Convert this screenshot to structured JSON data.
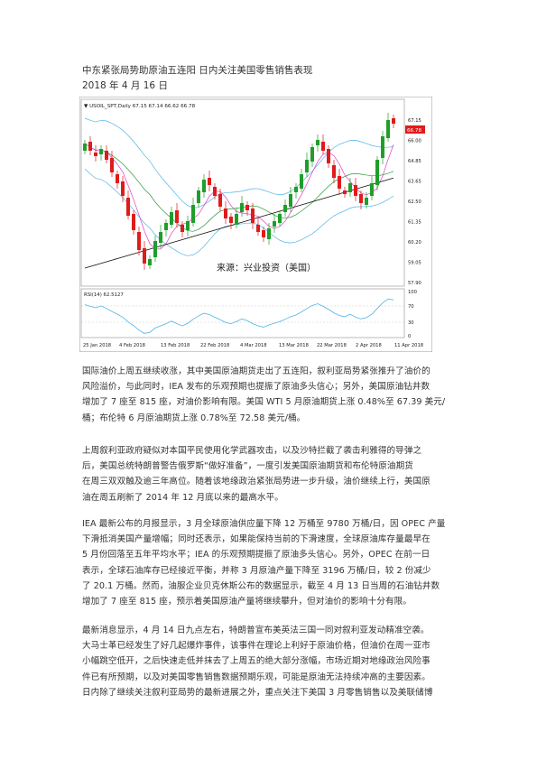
{
  "doc": {
    "title": "中东紧张局势助原油五连阳 日内关注美国零售销售表现",
    "date": "2018 年 4 月 16 日"
  },
  "chart": {
    "header": "▼ USOIL_SPT,Daily  67.15 67.14 66.62 66.78",
    "watermark": "来源：兴业投资（美国）",
    "price_tag": "66.78",
    "price_ticks": [
      "67.15",
      "66.00",
      "64.85",
      "63.65",
      "62.50",
      "61.35",
      "60.20",
      "59.05",
      "57.90"
    ],
    "rsi_label": "RSI(14) 62.5127",
    "rsi_ticks": [
      "100",
      "70",
      "30",
      "0"
    ],
    "date_ticks": [
      "25 Jan 2018",
      "4 Feb 2018",
      "13 Feb 2018",
      "22 Feb 2018",
      "4 Mar 2018",
      "13 Mar 2018",
      "22 Mar 2018",
      "2 Apr 2018",
      "11 Apr 2018"
    ],
    "colors": {
      "up": "#1f9e2a",
      "down": "#e01b1b",
      "bollinger": "#4fb4e8",
      "fast_ma": "#e040c8",
      "mid_ma": "#2a9a3a",
      "slow_ma": "#111111",
      "rsi": "#4fb4e8"
    }
  },
  "paragraphs": [
    [
      "国际油价上周五继续收涨，其中美国原油期货走出了五连阳，叙利亚局势紧张推升了油价的",
      "风险溢价，与此同时，IEA 发布的乐观预期也提振了原油多头信心；另外，美国原油钻井数",
      "增加了 7 座至 815 座，对油价影响有限。美国 WTI 5 月原油期货上涨 0.48%至 67.39 美元/",
      "桶；布伦特 6 月原油期货上涨 0.78%至 72.58 美元/桶。"
    ],
    [
      "上周叙利亚政府疑似对本国平民使用化学武器攻击，以及沙特拦截了袭击利雅得的导弹之",
      "后，美国总统特朗普警告俄罗斯“做好准备”，一度引发美国原油期货和布伦特原油期货",
      "在周三双双触及逾三年高位。随着该地缘政治紧张局势进一步升级，油价继续上行，美国原",
      "油在周五刷新了 2014 年 12 月底以来的最高水平。"
    ],
    [
      "IEA 最新公布的月报显示，3 月全球原油供应量下降 12 万桶至 9780 万桶/日，因 OPEC 产量",
      "下滑抵消美国产量增幅；同时还表示，如果能保持当前的下滑速度，全球原油库存量最早在",
      "5 月份回落至五年平均水平；IEA 的乐观预期提振了原油多头信心。另外，OPEC 在前一日",
      "表示，全球石油库存已经接近平衡，并称 3 月原油产量下降至 3196 万桶/日，较 2 份减少",
      "了 20.1 万桶。然而，油服企业贝克休斯公布的数据显示，截至 4 月 13 日当周的石油钻井数",
      "增加了 7 座至 815 座，预示着美国原油产量将继续攀升，但对油价的影响十分有限。"
    ],
    [
      "最新消息显示，4 月 14 日九点左右，特朗普宣布美英法三国一同对叙利亚发动精准空袭。",
      "大马士革已经发生了好几起爆炸事件，该事件在理论上利好于原油价格，但油价在周一亚市",
      "小幅跳空低开，之后快速走低并抹去了上周五的绝大部分涨幅，市场近期对地缘政治风险事",
      "件已有所预期，以及对美国零售销售数据预期乐观，可能是原油无法持续冲高的主要因素。",
      "日内除了继续关注叙利亚局势的最新进展之外，重点关注下美国 3 月零售销售以及美联储博"
    ]
  ]
}
